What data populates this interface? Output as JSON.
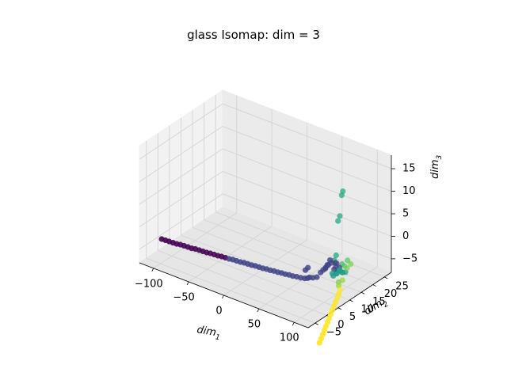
{
  "chart_data": {
    "type": "scatter",
    "projection": "3d",
    "title": "glass Isomap: dim = 3",
    "axes": {
      "x": {
        "label_base": "dim",
        "label_sub": "1",
        "ticks": [
          -100,
          -50,
          0,
          50,
          100
        ],
        "range": [
          -120,
          120
        ]
      },
      "y": {
        "label_base": "dim",
        "label_sub": "2",
        "ticks": [
          -5,
          0,
          5,
          10,
          15,
          20,
          25
        ],
        "range": [
          -8,
          28
        ]
      },
      "z": {
        "label_base": "dim",
        "label_sub": "3",
        "ticks": [
          -5,
          0,
          5,
          10,
          15
        ],
        "range": [
          -8,
          18
        ]
      }
    },
    "grid": true,
    "colormap": "viridis",
    "points": [
      {
        "x": -115,
        "y": 0.1,
        "z": -5.2,
        "c": 0.0
      },
      {
        "x": -110,
        "y": 0.2,
        "z": -5.2,
        "c": 0.0
      },
      {
        "x": -105,
        "y": 0.3,
        "z": -5.2,
        "c": 0.0
      },
      {
        "x": -100,
        "y": 0.4,
        "z": -5.2,
        "c": 0.0
      },
      {
        "x": -95,
        "y": 0.5,
        "z": -5.2,
        "c": 0.0
      },
      {
        "x": -90,
        "y": 0.6,
        "z": -5.1,
        "c": 0.0
      },
      {
        "x": -85,
        "y": 0.7,
        "z": -5.1,
        "c": 0.0
      },
      {
        "x": -80,
        "y": 0.8,
        "z": -5.1,
        "c": 0.0
      },
      {
        "x": -75,
        "y": 0.9,
        "z": -5.1,
        "c": 0.0
      },
      {
        "x": -70,
        "y": 1.0,
        "z": -5.0,
        "c": 0.0
      },
      {
        "x": -65,
        "y": 1.1,
        "z": -5.0,
        "c": 0.0
      },
      {
        "x": -60,
        "y": 1.2,
        "z": -5.0,
        "c": 0.0
      },
      {
        "x": -55,
        "y": 1.3,
        "z": -5.0,
        "c": 0.0
      },
      {
        "x": -50,
        "y": 1.4,
        "z": -4.9,
        "c": 0.0
      },
      {
        "x": -45,
        "y": 1.5,
        "z": -4.9,
        "c": 0.0
      },
      {
        "x": -40,
        "y": 1.6,
        "z": -4.9,
        "c": 0.0
      },
      {
        "x": -35,
        "y": 1.7,
        "z": -4.8,
        "c": 0.0
      },
      {
        "x": -30,
        "y": 1.8,
        "z": -4.8,
        "c": 0.0
      },
      {
        "x": -25,
        "y": 1.9,
        "z": -4.8,
        "c": 0.2
      },
      {
        "x": -20,
        "y": 2.0,
        "z": -4.7,
        "c": 0.2
      },
      {
        "x": -15,
        "y": 2.1,
        "z": -4.7,
        "c": 0.2
      },
      {
        "x": -10,
        "y": 2.2,
        "z": -4.7,
        "c": 0.2
      },
      {
        "x": -5,
        "y": 2.3,
        "z": -4.6,
        "c": 0.2
      },
      {
        "x": 0,
        "y": 2.4,
        "z": -4.6,
        "c": 0.2
      },
      {
        "x": 5,
        "y": 2.5,
        "z": -4.6,
        "c": 0.2
      },
      {
        "x": 10,
        "y": 2.6,
        "z": -4.5,
        "c": 0.2
      },
      {
        "x": 15,
        "y": 2.7,
        "z": -4.5,
        "c": 0.2
      },
      {
        "x": 20,
        "y": 2.8,
        "z": -4.5,
        "c": 0.2
      },
      {
        "x": 25,
        "y": 2.9,
        "z": -4.4,
        "c": 0.2
      },
      {
        "x": 30,
        "y": 3.0,
        "z": -4.4,
        "c": 0.2
      },
      {
        "x": 35,
        "y": 3.1,
        "z": -4.3,
        "c": 0.2
      },
      {
        "x": 40,
        "y": 3.2,
        "z": -4.3,
        "c": 0.2
      },
      {
        "x": 45,
        "y": 3.3,
        "z": -4.2,
        "c": 0.2
      },
      {
        "x": 50,
        "y": 3.4,
        "z": -4.2,
        "c": 0.2
      },
      {
        "x": 55,
        "y": 3.5,
        "z": -4.1,
        "c": 0.2
      },
      {
        "x": 60,
        "y": 3.6,
        "z": -4.1,
        "c": 0.2
      },
      {
        "x": 65,
        "y": 3.8,
        "z": -4.0,
        "c": 0.2
      },
      {
        "x": 70,
        "y": 4.0,
        "z": -4.0,
        "c": 0.2
      },
      {
        "x": 75,
        "y": 4.2,
        "z": -3.9,
        "c": 0.2
      },
      {
        "x": 78,
        "y": 4.5,
        "z": -3.8,
        "c": 0.2
      },
      {
        "x": 80,
        "y": 4.8,
        "z": -3.6,
        "c": 0.2
      },
      {
        "x": 84,
        "y": 5.0,
        "z": -3.5,
        "c": 0.2
      },
      {
        "x": 88,
        "y": 5.5,
        "z": -3.3,
        "c": 0.2
      },
      {
        "x": 70,
        "y": 6.0,
        "z": -3.0,
        "c": 0.2
      },
      {
        "x": 72,
        "y": 6.5,
        "z": -2.5,
        "c": 0.2
      },
      {
        "x": 95,
        "y": 7.0,
        "z": -1.5,
        "c": 0.2
      },
      {
        "x": 98,
        "y": 7.0,
        "z": -0.5,
        "c": 0.2
      },
      {
        "x": 100,
        "y": 7.5,
        "z": 0.5,
        "c": 0.2
      },
      {
        "x": 90,
        "y": 6.5,
        "z": -2.5,
        "c": 0.2
      },
      {
        "x": 92,
        "y": 7.0,
        "z": -2.0,
        "c": 0.2
      },
      {
        "x": 94,
        "y": 7.5,
        "z": -1.5,
        "c": 0.2
      },
      {
        "x": 96,
        "y": 8.0,
        "z": -1.0,
        "c": 0.2
      },
      {
        "x": 97,
        "y": 9.0,
        "z": -0.8,
        "c": 0.2
      },
      {
        "x": 99,
        "y": 10.0,
        "z": -1.0,
        "c": 0.2
      },
      {
        "x": 101,
        "y": 9.0,
        "z": -2.0,
        "c": 0.2
      },
      {
        "x": 100,
        "y": 10.0,
        "z": -1.8,
        "c": 0.2
      },
      {
        "x": 98,
        "y": 11.0,
        "z": -1.5,
        "c": 0.2
      },
      {
        "x": 102,
        "y": 11.0,
        "z": -2.2,
        "c": 0.2
      },
      {
        "x": 100,
        "y": 9.0,
        "z": -3.5,
        "c": 0.55
      },
      {
        "x": 101,
        "y": 10.0,
        "z": -3.2,
        "c": 0.55
      },
      {
        "x": 103,
        "y": 9.5,
        "z": -3.0,
        "c": 0.55
      },
      {
        "x": 100,
        "y": 8.5,
        "z": -2.8,
        "c": 0.55
      },
      {
        "x": 102,
        "y": 10.5,
        "z": -2.6,
        "c": 0.55
      },
      {
        "x": 104,
        "y": 10.0,
        "z": -2.4,
        "c": 0.55
      },
      {
        "x": 103,
        "y": 11.0,
        "z": -2.8,
        "c": 0.55
      },
      {
        "x": 105,
        "y": 11.5,
        "z": -3.3,
        "c": 0.55
      },
      {
        "x": 102,
        "y": 12.0,
        "z": -3.6,
        "c": 0.55
      },
      {
        "x": 104,
        "y": 13.0,
        "z": -3.8,
        "c": 0.55
      },
      {
        "x": 100,
        "y": 11.0,
        "z": 8.0,
        "c": 0.6
      },
      {
        "x": 101,
        "y": 11.5,
        "z": 9.0,
        "c": 0.6
      },
      {
        "x": 102,
        "y": 12.0,
        "z": 13.5,
        "c": 0.6
      },
      {
        "x": 102,
        "y": 12.5,
        "z": 14.2,
        "c": 0.6
      },
      {
        "x": 98,
        "y": 10.0,
        "z": -0.5,
        "c": 0.6
      },
      {
        "x": 99,
        "y": 10.5,
        "z": 0.5,
        "c": 0.6
      },
      {
        "x": 104,
        "y": 11.5,
        "z": -1.5,
        "c": 0.7
      },
      {
        "x": 106,
        "y": 12.0,
        "z": -2.0,
        "c": 0.75
      },
      {
        "x": 108,
        "y": 12.5,
        "z": -2.5,
        "c": 0.8
      },
      {
        "x": 107,
        "y": 13.0,
        "z": -1.0,
        "c": 0.75
      },
      {
        "x": 110,
        "y": 13.5,
        "z": -1.8,
        "c": 0.8
      },
      {
        "x": 104,
        "y": 10.0,
        "z": -5.0,
        "c": 0.8
      },
      {
        "x": 106,
        "y": 9.5,
        "z": -5.5,
        "c": 0.85
      },
      {
        "x": 108,
        "y": 10.5,
        "z": -4.5,
        "c": 0.85
      },
      {
        "x": 110,
        "y": 9.0,
        "z": -6.0,
        "c": 1.0
      },
      {
        "x": 111,
        "y": 8.0,
        "z": -6.5,
        "c": 1.0
      },
      {
        "x": 112,
        "y": 7.0,
        "z": -7.0,
        "c": 1.0
      },
      {
        "x": 113,
        "y": 6.0,
        "z": -7.5,
        "c": 1.0
      },
      {
        "x": 114,
        "y": 5.0,
        "z": -8.0,
        "c": 1.0
      },
      {
        "x": 115,
        "y": 4.0,
        "z": -8.5,
        "c": 1.0
      },
      {
        "x": 116,
        "y": 3.0,
        "z": -9.0,
        "c": 1.0
      },
      {
        "x": 117,
        "y": 2.0,
        "z": -9.5,
        "c": 1.0
      },
      {
        "x": 118,
        "y": 1.0,
        "z": -10.0,
        "c": 1.0
      },
      {
        "x": 119,
        "y": 0.0,
        "z": -10.5,
        "c": 1.0
      },
      {
        "x": 120,
        "y": -1.0,
        "z": -11.0,
        "c": 1.0
      },
      {
        "x": 121,
        "y": -2.0,
        "z": -11.5,
        "c": 1.0
      },
      {
        "x": 122,
        "y": -3.0,
        "z": -12.0,
        "c": 1.0
      },
      {
        "x": 123,
        "y": -4.0,
        "z": -12.5,
        "c": 1.0
      }
    ]
  }
}
